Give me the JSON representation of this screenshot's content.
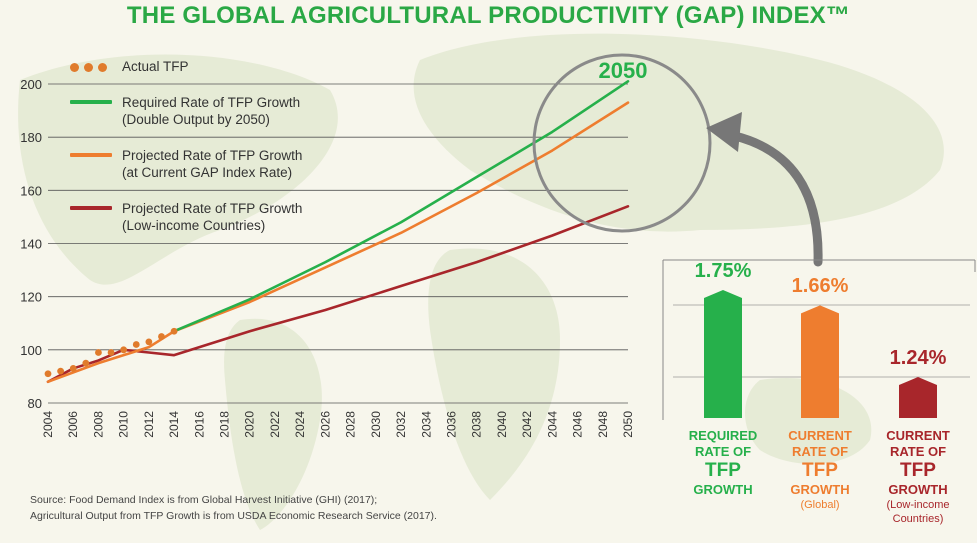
{
  "title": "THE GLOBAL AGRICULTURAL PRODUCTIVITY (GAP) INDEX™",
  "colors": {
    "title": "#2aa845",
    "actual": "#e07b2c",
    "required": "#26b04b",
    "projected": "#ee7d2f",
    "lowincome": "#a8262b",
    "callout": "#8a8a8a",
    "map": "#d9e2c4"
  },
  "legend": [
    {
      "key": "actual",
      "lines": [
        "Actual TFP"
      ]
    },
    {
      "key": "required",
      "lines": [
        "Required Rate of TFP Growth",
        "(Double Output by 2050)"
      ]
    },
    {
      "key": "projected",
      "lines": [
        "Projected Rate of TFP Growth",
        "(at Current GAP Index Rate)"
      ]
    },
    {
      "key": "lowincome",
      "lines": [
        "Projected Rate of TFP Growth",
        "(Low-income Countries)"
      ]
    }
  ],
  "callout_label": "2050",
  "source_lines": [
    "Source: Food Demand Index is from Global Harvest Initiative (GHI) (2017);",
    "Agricultural Output from TFP Growth is from USDA Economic Research Service (2017)."
  ],
  "chart_data": [
    {
      "type": "line",
      "title": "",
      "xlabel": "",
      "ylabel": "",
      "xlim": [
        2004,
        2050
      ],
      "ylim": [
        80,
        200
      ],
      "x_ticks": [
        2004,
        2006,
        2008,
        2010,
        2012,
        2014,
        2016,
        2018,
        2020,
        2022,
        2024,
        2026,
        2028,
        2030,
        2032,
        2034,
        2036,
        2038,
        2040,
        2042,
        2044,
        2046,
        2048,
        2050
      ],
      "y_ticks": [
        80,
        100,
        120,
        140,
        160,
        180,
        200
      ],
      "grid": "horizontal",
      "legend_position": "top-left",
      "series": [
        {
          "name": "Actual TFP",
          "key": "actual",
          "style": "dots",
          "x": [
            2004,
            2005,
            2006,
            2007,
            2008,
            2009,
            2010,
            2011,
            2012,
            2013,
            2014
          ],
          "y": [
            91,
            92,
            93,
            95,
            99,
            99,
            100,
            102,
            103,
            105,
            107
          ]
        },
        {
          "name": "Required Rate of TFP Growth (Double Output by 2050)",
          "key": "required",
          "style": "line",
          "x": [
            2014,
            2020,
            2026,
            2032,
            2038,
            2044,
            2050
          ],
          "y": [
            107,
            119,
            133,
            148,
            165,
            182,
            201
          ]
        },
        {
          "name": "Projected Rate of TFP Growth (at Current GAP Index Rate)",
          "key": "projected",
          "style": "line",
          "x": [
            2004,
            2008,
            2012,
            2014,
            2020,
            2026,
            2032,
            2038,
            2044,
            2050
          ],
          "y": [
            88,
            95,
            101,
            107,
            118,
            131,
            144,
            159,
            175,
            193
          ]
        },
        {
          "name": "Projected Rate of TFP Growth (Low-income Countries)",
          "key": "lowincome",
          "style": "line",
          "x": [
            2004,
            2006,
            2008,
            2010,
            2012,
            2014,
            2020,
            2026,
            2032,
            2038,
            2044,
            2050
          ],
          "y": [
            88,
            93,
            96,
            100,
            99,
            98,
            107,
            115,
            124,
            133,
            143,
            154
          ]
        }
      ]
    },
    {
      "type": "bar",
      "title": "",
      "values_unit": "%",
      "categories": [
        "REQUIRED RATE OF TFP GROWTH",
        "CURRENT RATE OF TFP GROWTH (Global)",
        "CURRENT RATE OF TFP GROWTH (Low-income Countries)"
      ],
      "values": [
        1.75,
        1.66,
        1.24
      ],
      "value_labels": [
        "1.75%",
        "1.66%",
        "1.24%"
      ],
      "keys": [
        "required",
        "projected",
        "lowincome"
      ],
      "captions": [
        {
          "line1": "REQUIRED",
          "line2": "RATE OF",
          "big": "TFP",
          "line3": "GROWTH",
          "small": []
        },
        {
          "line1": "CURRENT",
          "line2": "RATE OF",
          "big": "TFP",
          "line3": "GROWTH",
          "small": [
            "(Global)"
          ]
        },
        {
          "line1": "CURRENT",
          "line2": "RATE OF",
          "big": "TFP",
          "line3": "GROWTH",
          "small": [
            "(Low-income",
            "Countries)"
          ]
        }
      ]
    }
  ]
}
